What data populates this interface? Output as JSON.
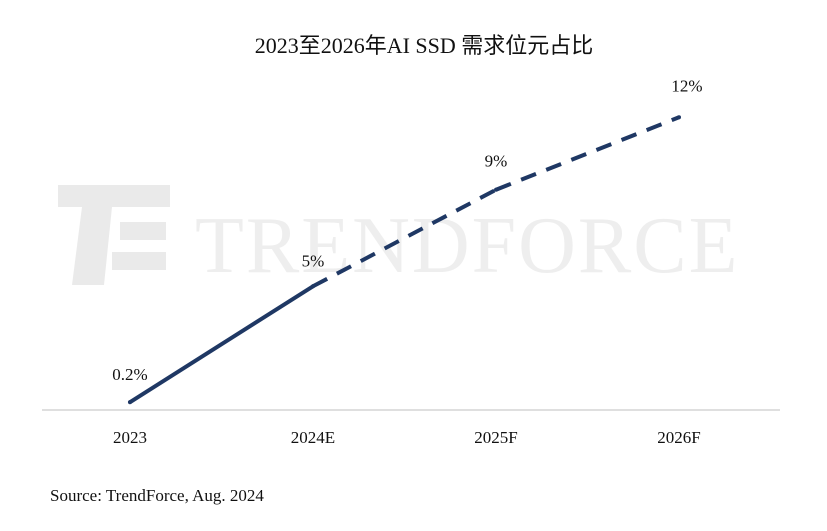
{
  "chart_data": {
    "type": "line",
    "title": "2023至2026年AI SSD 需求位元占比",
    "categories": [
      "2023",
      "2024E",
      "2025F",
      "2026F"
    ],
    "series": [
      {
        "values": [
          0.2,
          5,
          9,
          12
        ],
        "data_labels": [
          "0.2%",
          "5%",
          "9%",
          "12%"
        ]
      }
    ],
    "actual_through": "2024E",
    "forecast_style": "dashed",
    "ylim": [
      0,
      14
    ],
    "grid": false,
    "legend": "none",
    "xlabel": "",
    "ylabel": ""
  },
  "source": "Source: TrendForce, Aug. 2024",
  "watermark": {
    "text": "TRENDFORCE"
  },
  "colors": {
    "line": "#1f3864",
    "axis": "#bfbfbf",
    "text": "#111111"
  }
}
